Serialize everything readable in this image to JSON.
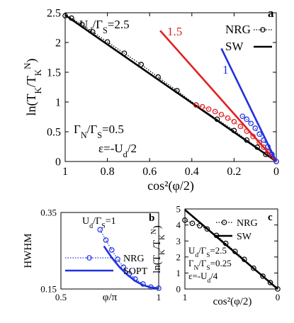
{
  "chart_data": [
    {
      "type": "line",
      "panel_label": "a",
      "xlabel": "cos²(φ/2)",
      "ylabel": "ln(T_K/T_K^N)",
      "xlim": [
        1,
        0
      ],
      "ylim": [
        0,
        2.5
      ],
      "x_ticks": [
        "1",
        "0.8",
        "0.6",
        "0.4",
        "0.2",
        "0"
      ],
      "y_ticks": [
        "0",
        "0.5",
        "1",
        "1.5",
        "2",
        "2.5"
      ],
      "legend": {
        "placement": "top-right",
        "entries": [
          "NRG",
          "SW"
        ]
      },
      "annotations": [
        "U_d/Γ_S=2.5",
        "Γ_N/Γ_S=0.5",
        "ε=-U_d/2"
      ],
      "curve_labels": [
        "1.5",
        "1"
      ],
      "series": [
        {
          "name": "NRG",
          "ratio": "2.5",
          "style": "dotted-circles",
          "color": "#000000",
          "x": [
            1.0,
            0.97,
            0.92,
            0.87,
            0.8,
            0.72,
            0.64,
            0.56,
            0.47,
            0.38,
            0.28,
            0.2,
            0.14,
            0.09,
            0.05,
            0.0
          ],
          "y": [
            2.45,
            2.41,
            2.3,
            2.18,
            2.01,
            1.82,
            1.63,
            1.42,
            1.19,
            0.95,
            0.71,
            0.52,
            0.36,
            0.24,
            0.12,
            0.0
          ]
        },
        {
          "name": "SW",
          "ratio": "2.5",
          "style": "solid",
          "color": "#000000",
          "x": [
            1.0,
            0.0
          ],
          "y": [
            2.46,
            0.0
          ]
        },
        {
          "name": "NRG",
          "ratio": "1.5",
          "style": "dotted-circles",
          "color": "#e02020",
          "x": [
            0.38,
            0.35,
            0.32,
            0.29,
            0.26,
            0.23,
            0.2,
            0.17,
            0.14,
            0.11,
            0.08,
            0.06,
            0.04,
            0.02,
            0.0
          ],
          "y": [
            0.95,
            0.92,
            0.88,
            0.84,
            0.79,
            0.73,
            0.67,
            0.59,
            0.51,
            0.42,
            0.32,
            0.24,
            0.16,
            0.08,
            0.0
          ]
        },
        {
          "name": "SW",
          "ratio": "1.5",
          "style": "solid",
          "color": "#e02020",
          "x": [
            0.55,
            0.0
          ],
          "y": [
            2.2,
            0.0
          ]
        },
        {
          "name": "NRG",
          "ratio": "1",
          "style": "dotted-circles",
          "color": "#2030e0",
          "x": [
            0.16,
            0.14,
            0.12,
            0.1,
            0.08,
            0.06,
            0.04,
            0.02,
            0.0
          ],
          "y": [
            0.76,
            0.71,
            0.64,
            0.56,
            0.46,
            0.36,
            0.25,
            0.12,
            0.0
          ]
        },
        {
          "name": "SW",
          "ratio": "1",
          "style": "solid",
          "color": "#2030e0",
          "x": [
            0.26,
            0.0
          ],
          "y": [
            1.9,
            0.0
          ]
        }
      ]
    },
    {
      "type": "line",
      "panel_label": "b",
      "xlabel": "φ/π",
      "ylabel": "HWHM",
      "xlim": [
        0.5,
        1
      ],
      "ylim": [
        0.15,
        0.35
      ],
      "x_ticks": [
        "0.5",
        "1"
      ],
      "y_ticks": [
        "0.15",
        "0.35"
      ],
      "legend": {
        "placement": "bottom-left",
        "entries": [
          "NRG",
          "SOPT"
        ]
      },
      "annotations": [
        "U_d/Γ_S=1"
      ],
      "series": [
        {
          "name": "NRG",
          "style": "dotted-circles",
          "color": "#2030e0",
          "x": [
            0.7,
            0.73,
            0.76,
            0.79,
            0.82,
            0.85,
            0.88,
            0.92,
            0.96,
            1.0
          ],
          "y": [
            0.305,
            0.278,
            0.252,
            0.228,
            0.207,
            0.19,
            0.176,
            0.163,
            0.155,
            0.152
          ]
        },
        {
          "name": "SOPT",
          "style": "solid",
          "color": "#2030e0",
          "x": [
            0.72,
            0.76,
            0.8,
            0.84,
            0.88,
            0.92,
            0.96,
            1.0
          ],
          "y": [
            0.262,
            0.232,
            0.207,
            0.187,
            0.171,
            0.16,
            0.154,
            0.152
          ]
        }
      ]
    },
    {
      "type": "line",
      "panel_label": "c",
      "xlabel": "cos²(φ/2)",
      "ylabel": "ln(T_K/T_K^N)",
      "xlim": [
        1,
        0
      ],
      "ylim": [
        0,
        5
      ],
      "x_ticks": [
        "1",
        "0"
      ],
      "y_ticks": [
        "0",
        "1",
        "2",
        "3",
        "4",
        "5"
      ],
      "legend": {
        "placement": "top-right",
        "entries": [
          "NRG",
          "SW"
        ]
      },
      "annotations": [
        "U_d/Γ_S=2.5",
        "Γ_N/Γ_S=0.25",
        "ε=-U_d/4"
      ],
      "series": [
        {
          "name": "NRG",
          "style": "dotted-circles",
          "color": "#000000",
          "x": [
            1.0,
            0.92,
            0.84,
            0.76,
            0.66,
            0.56,
            0.46,
            0.36,
            0.26,
            0.16,
            0.08,
            0.0
          ],
          "y": [
            4.3,
            4.1,
            3.95,
            3.75,
            3.35,
            2.85,
            2.35,
            1.85,
            1.3,
            0.8,
            0.4,
            0.0
          ]
        },
        {
          "name": "SW",
          "style": "solid",
          "color": "#000000",
          "x": [
            1.0,
            0.0
          ],
          "y": [
            4.95,
            0.0
          ]
        }
      ]
    }
  ]
}
